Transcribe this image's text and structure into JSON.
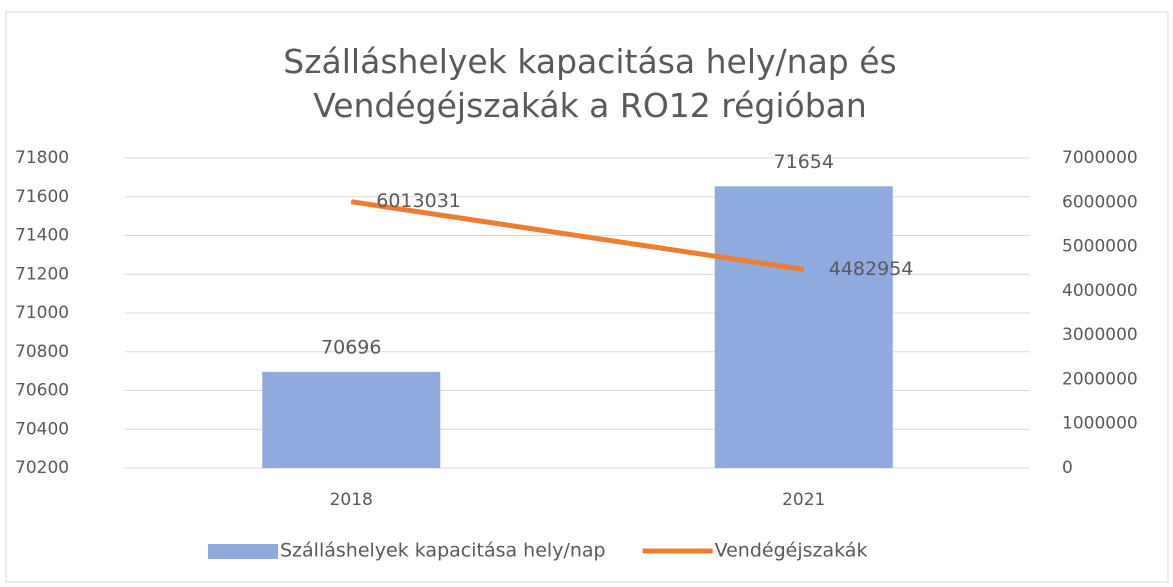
{
  "chart_data": {
    "type": "bar_line",
    "title": "Szálláshelyek kapacitása hely/nap  és Vendégéjszakák a RO12 régióban",
    "categories": [
      "2018",
      "2021"
    ],
    "series": [
      {
        "name": "Szálláshelyek kapacitása hely/nap",
        "type": "bar",
        "color": "#8faadc",
        "axis": "y",
        "values": [
          70696,
          71654
        ]
      },
      {
        "name": "Vendégéjszakák",
        "type": "line",
        "color": "#ed7d31",
        "axis": "y2",
        "values": [
          6013031,
          4482954
        ]
      }
    ],
    "ylim": [
      70200,
      71800
    ],
    "yticks": [
      70200,
      70400,
      70600,
      70800,
      71000,
      71200,
      71400,
      71600,
      71800
    ],
    "y2lim": [
      0,
      7000000
    ],
    "y2ticks": [
      0,
      1000000,
      2000000,
      3000000,
      4000000,
      5000000,
      6000000,
      7000000
    ],
    "grid": true,
    "legend": "bottom"
  }
}
